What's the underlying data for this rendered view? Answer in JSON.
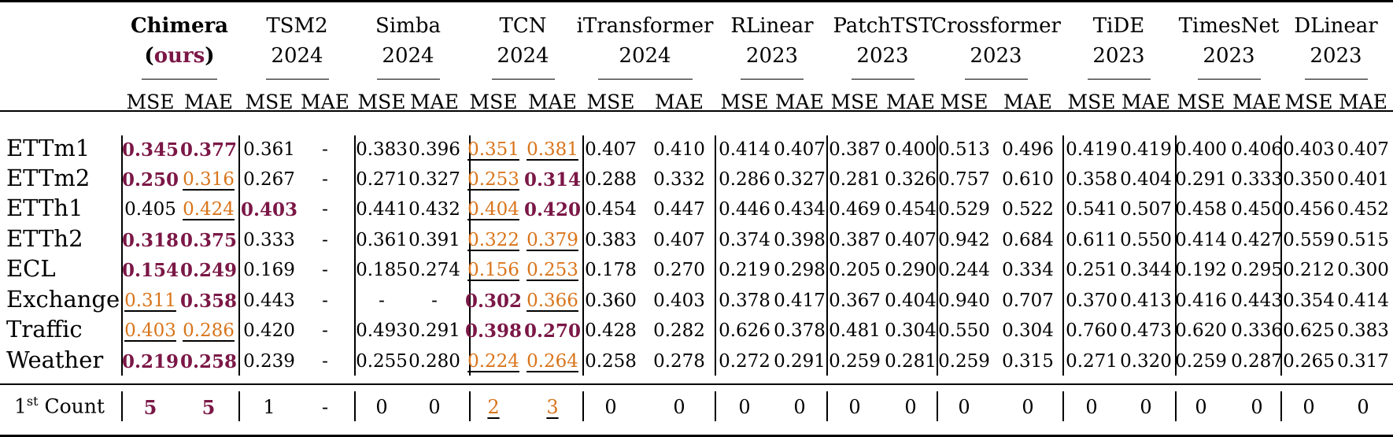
{
  "models": [
    {
      "name": "Chimera",
      "sub_prefix": "(",
      "sub_tag": "ours",
      "sub_suffix": ")",
      "metrics": [
        "MSE",
        "MAE"
      ]
    },
    {
      "name": "TSM2",
      "year": "2024",
      "metrics": [
        "MSE",
        "MAE"
      ]
    },
    {
      "name": "Simba",
      "year": "2024",
      "metrics": [
        "MSE",
        "MAE"
      ]
    },
    {
      "name": "TCN",
      "year": "2024",
      "metrics": [
        "MSE",
        "MAE"
      ]
    },
    {
      "name": "iTransformer",
      "year": "2024",
      "metrics": [
        "MSE",
        "MAE"
      ]
    },
    {
      "name": "RLinear",
      "year": "2023",
      "metrics": [
        "MSE",
        "MAE"
      ]
    },
    {
      "name": "PatchTST",
      "year": "2023",
      "metrics": [
        "MSE",
        "MAE"
      ]
    },
    {
      "name": "Crossformer",
      "year": "2023",
      "metrics": [
        "MSE",
        "MAE"
      ]
    },
    {
      "name": "TiDE",
      "year": "2023",
      "metrics": [
        "MSE",
        "MAE"
      ]
    },
    {
      "name": "TimesNet",
      "year": "2023",
      "metrics": [
        "MSE",
        "MAE"
      ]
    },
    {
      "name": "DLinear",
      "year": "2023",
      "metrics": [
        "MSE",
        "MAE"
      ]
    }
  ],
  "rows": [
    {
      "dataset": "ETTm1",
      "values": [
        "0.345",
        "0.377",
        "0.361",
        "-",
        "0.383",
        "0.396",
        "0.351",
        "0.381",
        "0.407",
        "0.410",
        "0.414",
        "0.407",
        "0.387",
        "0.400",
        "0.513",
        "0.496",
        "0.419",
        "0.419",
        "0.400",
        "0.406",
        "0.403",
        "0.407"
      ],
      "best": [
        0,
        1
      ],
      "second": [
        6,
        7
      ]
    },
    {
      "dataset": "ETTm2",
      "values": [
        "0.250",
        "0.316",
        "0.267",
        "-",
        "0.271",
        "0.327",
        "0.253",
        "0.314",
        "0.288",
        "0.332",
        "0.286",
        "0.327",
        "0.281",
        "0.326",
        "0.757",
        "0.610",
        "0.358",
        "0.404",
        "0.291",
        "0.333",
        "0.350",
        "0.401"
      ],
      "best": [
        0,
        7
      ],
      "second": [
        1,
        6
      ]
    },
    {
      "dataset": "ETTh1",
      "values": [
        "0.405",
        "0.424",
        "0.403",
        "-",
        "0.441",
        "0.432",
        "0.404",
        "0.420",
        "0.454",
        "0.447",
        "0.446",
        "0.434",
        "0.469",
        "0.454",
        "0.529",
        "0.522",
        "0.541",
        "0.507",
        "0.458",
        "0.450",
        "0.456",
        "0.452"
      ],
      "best": [
        2,
        7
      ],
      "second": [
        1,
        6
      ]
    },
    {
      "dataset": "ETTh2",
      "values": [
        "0.318",
        "0.375",
        "0.333",
        "-",
        "0.361",
        "0.391",
        "0.322",
        "0.379",
        "0.383",
        "0.407",
        "0.374",
        "0.398",
        "0.387",
        "0.407",
        "0.942",
        "0.684",
        "0.611",
        "0.550",
        "0.414",
        "0.427",
        "0.559",
        "0.515"
      ],
      "best": [
        0,
        1
      ],
      "second": [
        6,
        7
      ]
    },
    {
      "dataset": "ECL",
      "values": [
        "0.154",
        "0.249",
        "0.169",
        "-",
        "0.185",
        "0.274",
        "0.156",
        "0.253",
        "0.178",
        "0.270",
        "0.219",
        "0.298",
        "0.205",
        "0.290",
        "0.244",
        "0.334",
        "0.251",
        "0.344",
        "0.192",
        "0.295",
        "0.212",
        "0.300"
      ],
      "best": [
        0,
        1
      ],
      "second": [
        6,
        7
      ]
    },
    {
      "dataset": "Exchange",
      "values": [
        "0.311",
        "0.358",
        "0.443",
        "-",
        "-",
        "-",
        "0.302",
        "0.366",
        "0.360",
        "0.403",
        "0.378",
        "0.417",
        "0.367",
        "0.404",
        "0.940",
        "0.707",
        "0.370",
        "0.413",
        "0.416",
        "0.443",
        "0.354",
        "0.414"
      ],
      "best": [
        1,
        6
      ],
      "second": [
        0,
        7
      ]
    },
    {
      "dataset": "Traffic",
      "values": [
        "0.403",
        "0.286",
        "0.420",
        "-",
        "0.493",
        "0.291",
        "0.398",
        "0.270",
        "0.428",
        "0.282",
        "0.626",
        "0.378",
        "0.481",
        "0.304",
        "0.550",
        "0.304",
        "0.760",
        "0.473",
        "0.620",
        "0.336",
        "0.625",
        "0.383"
      ],
      "best": [
        6,
        7
      ],
      "second": [
        0,
        1
      ]
    },
    {
      "dataset": "Weather",
      "values": [
        "0.219",
        "0.258",
        "0.239",
        "-",
        "0.255",
        "0.280",
        "0.224",
        "0.264",
        "0.258",
        "0.278",
        "0.272",
        "0.291",
        "0.259",
        "0.281",
        "0.259",
        "0.315",
        "0.271",
        "0.320",
        "0.259",
        "0.287",
        "0.265",
        "0.317"
      ],
      "best": [
        0,
        1
      ],
      "second": [
        6,
        7
      ]
    }
  ],
  "count_row": {
    "label_pre": "1",
    "label_sup": "st",
    "label_post": " Count",
    "values": [
      "5",
      "5",
      "1",
      "-",
      "0",
      "0",
      "2",
      "3",
      "0",
      "0",
      "0",
      "0",
      "0",
      "0",
      "0",
      "0",
      "0",
      "0",
      "0",
      "0",
      "0",
      "0"
    ],
    "best": [
      0,
      1
    ],
    "second": [
      6,
      7
    ]
  },
  "colors": {
    "best": "#7b1746",
    "second": "#d9751c"
  }
}
